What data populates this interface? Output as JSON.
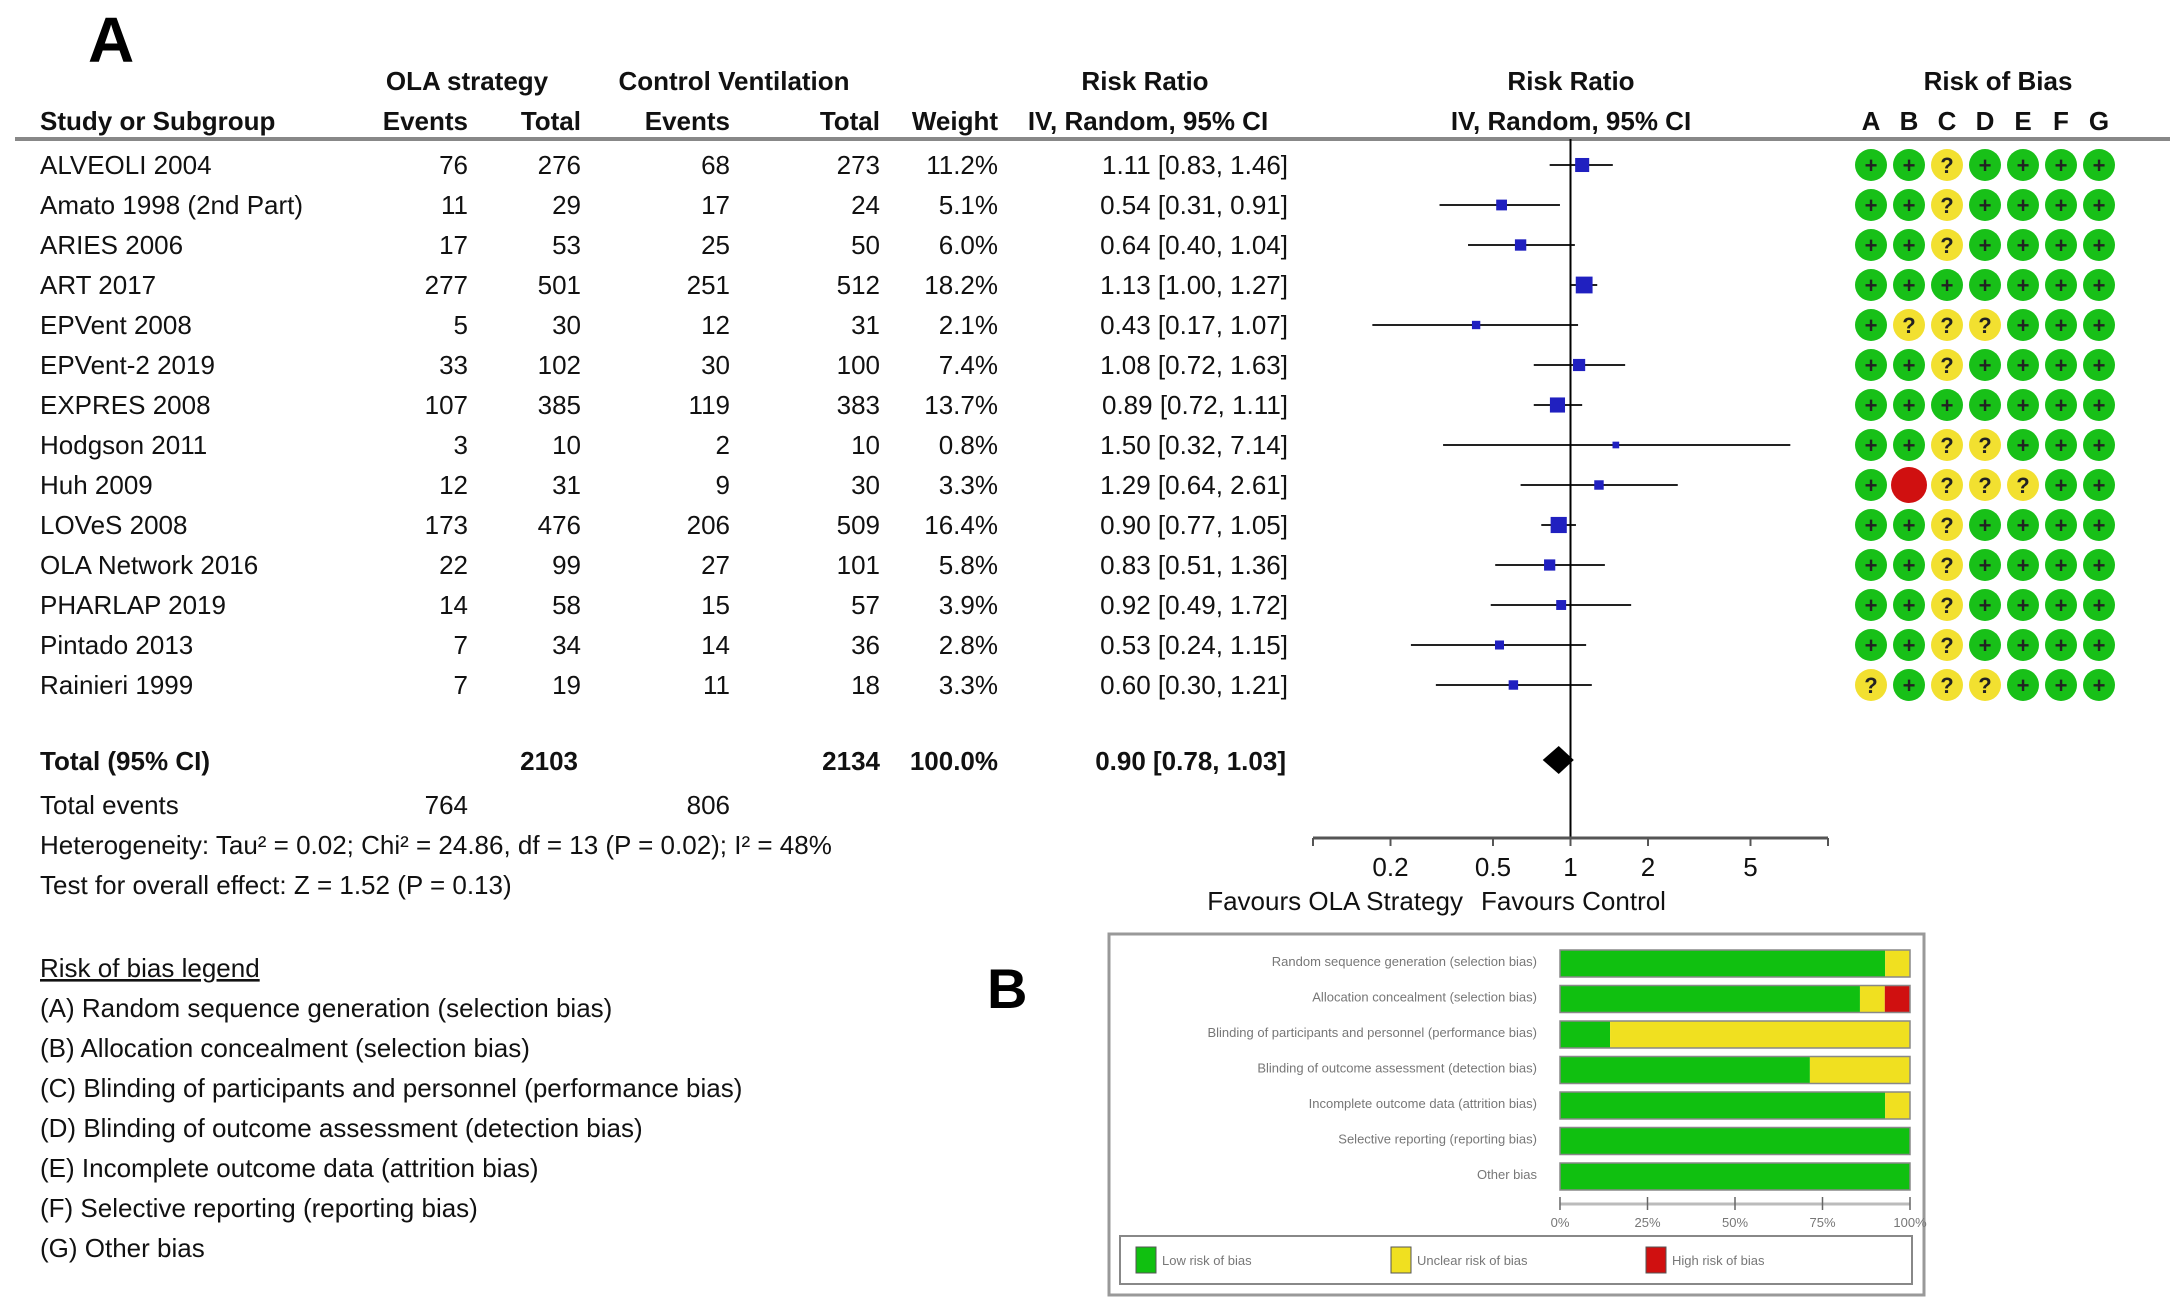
{
  "panel_a_label": "A",
  "panel_b_label": "B",
  "headers": {
    "study": "Study or Subgroup",
    "ola_group": "OLA strategy",
    "control_group": "Control Ventilation",
    "events": "Events",
    "total": "Total",
    "weight": "Weight",
    "rr_title": "Risk Ratio",
    "rr_method": "IV, Random, 95% CI",
    "plot_title": "Risk Ratio",
    "plot_method": "IV, Random, 95% CI",
    "bias_title": "Risk of Bias",
    "bias_domains": [
      "A",
      "B",
      "C",
      "D",
      "E",
      "F",
      "G"
    ]
  },
  "chart_data": [
    {
      "type": "forest",
      "x_scale": "log",
      "xlim": [
        0.1,
        10
      ],
      "x_ticks": [
        "0.2",
        "0.5",
        "1",
        "2",
        "5"
      ],
      "favours_left": "Favours OLA Strategy",
      "favours_right": "Favours Control",
      "colors": {
        "square": "#2020c0",
        "diamond": "#000000"
      },
      "studies": [
        {
          "name": "ALVEOLI 2004",
          "ola_events": "76",
          "ola_total": "276",
          "ctrl_events": "68",
          "ctrl_total": "273",
          "weight": "11.2%",
          "rr_text": "1.11 [0.83, 1.46]",
          "rr": 1.11,
          "lo": 0.83,
          "hi": 1.46,
          "bias": [
            "+",
            "+",
            "?",
            "+",
            "+",
            "+",
            "+"
          ]
        },
        {
          "name": "Amato 1998 (2nd Part)",
          "ola_events": "11",
          "ola_total": "29",
          "ctrl_events": "17",
          "ctrl_total": "24",
          "weight": "5.1%",
          "rr_text": "0.54 [0.31, 0.91]",
          "rr": 0.54,
          "lo": 0.31,
          "hi": 0.91,
          "bias": [
            "+",
            "+",
            "?",
            "+",
            "+",
            "+",
            "+"
          ]
        },
        {
          "name": "ARIES 2006",
          "ola_events": "17",
          "ola_total": "53",
          "ctrl_events": "25",
          "ctrl_total": "50",
          "weight": "6.0%",
          "rr_text": "0.64 [0.40, 1.04]",
          "rr": 0.64,
          "lo": 0.4,
          "hi": 1.04,
          "bias": [
            "+",
            "+",
            "?",
            "+",
            "+",
            "+",
            "+"
          ]
        },
        {
          "name": "ART 2017",
          "ola_events": "277",
          "ola_total": "501",
          "ctrl_events": "251",
          "ctrl_total": "512",
          "weight": "18.2%",
          "rr_text": "1.13 [1.00, 1.27]",
          "rr": 1.13,
          "lo": 1.0,
          "hi": 1.27,
          "bias": [
            "+",
            "+",
            "+",
            "+",
            "+",
            "+",
            "+"
          ]
        },
        {
          "name": "EPVent 2008",
          "ola_events": "5",
          "ola_total": "30",
          "ctrl_events": "12",
          "ctrl_total": "31",
          "weight": "2.1%",
          "rr_text": "0.43 [0.17, 1.07]",
          "rr": 0.43,
          "lo": 0.17,
          "hi": 1.07,
          "bias": [
            "+",
            "?",
            "?",
            "?",
            "+",
            "+",
            "+"
          ]
        },
        {
          "name": "EPVent-2 2019",
          "ola_events": "33",
          "ola_total": "102",
          "ctrl_events": "30",
          "ctrl_total": "100",
          "weight": "7.4%",
          "rr_text": "1.08 [0.72, 1.63]",
          "rr": 1.08,
          "lo": 0.72,
          "hi": 1.63,
          "bias": [
            "+",
            "+",
            "?",
            "+",
            "+",
            "+",
            "+"
          ]
        },
        {
          "name": "EXPRES 2008",
          "ola_events": "107",
          "ola_total": "385",
          "ctrl_events": "119",
          "ctrl_total": "383",
          "weight": "13.7%",
          "rr_text": "0.89 [0.72, 1.11]",
          "rr": 0.89,
          "lo": 0.72,
          "hi": 1.11,
          "bias": [
            "+",
            "+",
            "+",
            "+",
            "+",
            "+",
            "+"
          ]
        },
        {
          "name": "Hodgson 2011",
          "ola_events": "3",
          "ola_total": "10",
          "ctrl_events": "2",
          "ctrl_total": "10",
          "weight": "0.8%",
          "rr_text": "1.50 [0.32, 7.14]",
          "rr": 1.5,
          "lo": 0.32,
          "hi": 7.14,
          "bias": [
            "+",
            "+",
            "?",
            "?",
            "+",
            "+",
            "+"
          ]
        },
        {
          "name": "Huh 2009",
          "ola_events": "12",
          "ola_total": "31",
          "ctrl_events": "9",
          "ctrl_total": "30",
          "weight": "3.3%",
          "rr_text": "1.29 [0.64, 2.61]",
          "rr": 1.29,
          "lo": 0.64,
          "hi": 2.61,
          "bias": [
            "+",
            "-",
            "?",
            "?",
            "?",
            "+",
            "+"
          ]
        },
        {
          "name": "LOVeS 2008",
          "ola_events": "173",
          "ola_total": "476",
          "ctrl_events": "206",
          "ctrl_total": "509",
          "weight": "16.4%",
          "rr_text": "0.90 [0.77, 1.05]",
          "rr": 0.9,
          "lo": 0.77,
          "hi": 1.05,
          "bias": [
            "+",
            "+",
            "?",
            "+",
            "+",
            "+",
            "+"
          ]
        },
        {
          "name": "OLA Network 2016",
          "ola_events": "22",
          "ola_total": "99",
          "ctrl_events": "27",
          "ctrl_total": "101",
          "weight": "5.8%",
          "rr_text": "0.83 [0.51, 1.36]",
          "rr": 0.83,
          "lo": 0.51,
          "hi": 1.36,
          "bias": [
            "+",
            "+",
            "?",
            "+",
            "+",
            "+",
            "+"
          ]
        },
        {
          "name": "PHARLAP 2019",
          "ola_events": "14",
          "ola_total": "58",
          "ctrl_events": "15",
          "ctrl_total": "57",
          "weight": "3.9%",
          "rr_text": "0.92 [0.49, 1.72]",
          "rr": 0.92,
          "lo": 0.49,
          "hi": 1.72,
          "bias": [
            "+",
            "+",
            "?",
            "+",
            "+",
            "+",
            "+"
          ]
        },
        {
          "name": "Pintado 2013",
          "ola_events": "7",
          "ola_total": "34",
          "ctrl_events": "14",
          "ctrl_total": "36",
          "weight": "2.8%",
          "rr_text": "0.53 [0.24, 1.15]",
          "rr": 0.53,
          "lo": 0.24,
          "hi": 1.15,
          "bias": [
            "+",
            "+",
            "?",
            "+",
            "+",
            "+",
            "+"
          ]
        },
        {
          "name": "Rainieri 1999",
          "ola_events": "7",
          "ola_total": "19",
          "ctrl_events": "11",
          "ctrl_total": "18",
          "weight": "3.3%",
          "rr_text": "0.60 [0.30, 1.21]",
          "rr": 0.6,
          "lo": 0.3,
          "hi": 1.21,
          "bias": [
            "?",
            "+",
            "?",
            "?",
            "+",
            "+",
            "+"
          ]
        }
      ],
      "total": {
        "label": "Total (95% CI)",
        "ola_total": "2103",
        "ctrl_total": "2134",
        "weight": "100.0%",
        "rr_text": "0.90 [0.78, 1.03]",
        "rr": 0.9,
        "lo": 0.78,
        "hi": 1.03
      },
      "total_events": {
        "label": "Total events",
        "ola": "764",
        "ctrl": "806"
      },
      "heterogeneity": "Heterogeneity: Tau² = 0.02; Chi² = 24.86, df = 13 (P = 0.02); I² = 48%",
      "overall_effect": "Test for overall effect: Z = 1.52 (P = 0.13)"
    },
    {
      "type": "stacked-bar-horizontal",
      "categories": [
        "Random sequence generation (selection bias)",
        "Allocation concealment (selection bias)",
        "Blinding of participants and personnel (performance bias)",
        "Blinding of outcome assessment (detection bias)",
        "Incomplete outcome data (attrition bias)",
        "Selective reporting (reporting bias)",
        "Other bias"
      ],
      "series": [
        {
          "name": "Low risk of bias",
          "color": "#10c010",
          "values": [
            92.9,
            85.7,
            14.3,
            71.4,
            92.9,
            100,
            100
          ]
        },
        {
          "name": "Unclear risk of bias",
          "color": "#f0e020",
          "values": [
            7.1,
            7.1,
            85.7,
            28.6,
            7.1,
            0,
            0
          ]
        },
        {
          "name": "High risk of bias",
          "color": "#d01010",
          "values": [
            0,
            7.1,
            0,
            0,
            0,
            0,
            0
          ]
        }
      ],
      "x_ticks": [
        "0%",
        "25%",
        "50%",
        "75%",
        "100%"
      ],
      "xlim": [
        0,
        100
      ]
    }
  ],
  "bias_colors": {
    "low": "#18c018",
    "unclear": "#f2e030",
    "high": "#d01010"
  },
  "legend": {
    "title": "Risk of bias legend",
    "items": [
      "(A) Random sequence generation (selection bias)",
      "(B) Allocation concealment (selection bias)",
      "(C) Blinding of participants and personnel (performance bias)",
      "(D) Blinding of outcome assessment (detection bias)",
      "(E) Incomplete outcome data (attrition bias)",
      "(F) Selective reporting (reporting bias)",
      "(G) Other bias"
    ]
  }
}
